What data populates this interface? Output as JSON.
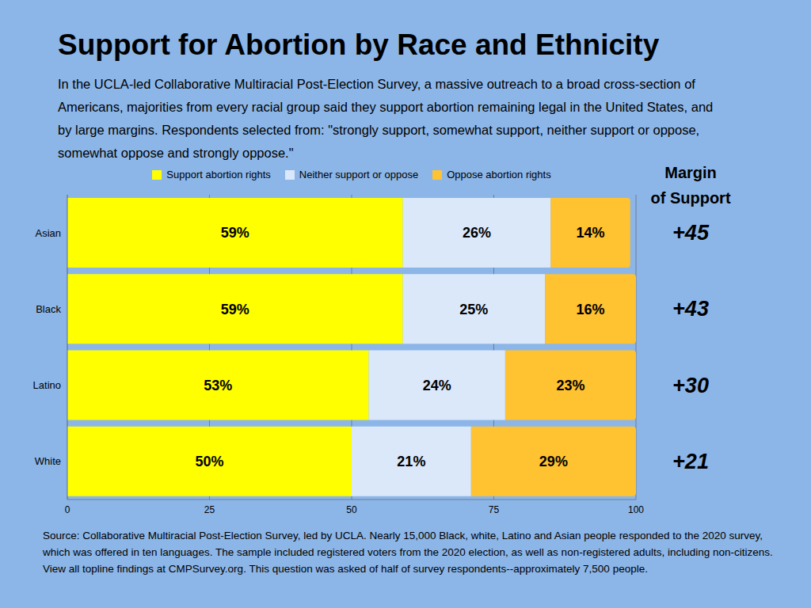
{
  "chart_data": {
    "type": "bar",
    "title": "Support for Abortion by Race and Ethnicity",
    "subtitle": "In the UCLA-led Collaborative Multiracial Post-Election Survey, a massive outreach to a broad cross-section of Americans, majorities from every racial group said they support abortion remaining legal in the United States, and by large margins. Respondents selected from: \"strongly support, somewhat support, neither support or oppose, somewhat oppose and strongly oppose.\"",
    "categories": [
      "Asian",
      "Black",
      "Latino",
      "White"
    ],
    "series": [
      {
        "name": "Support abortion rights",
        "color": "#ffff00",
        "values": [
          59,
          59,
          53,
          50
        ],
        "value_labels": [
          "59%",
          "59%",
          "53%",
          "50%"
        ]
      },
      {
        "name": "Neither support or oppose",
        "color": "#dae8fa",
        "values": [
          26,
          25,
          24,
          21
        ],
        "value_labels": [
          "26%",
          "25%",
          "24%",
          "21%"
        ]
      },
      {
        "name": "Oppose abortion rights",
        "color": "#ffc230",
        "values": [
          14,
          16,
          23,
          29
        ],
        "value_labels": [
          "14%",
          "16%",
          "23%",
          "29%"
        ]
      }
    ],
    "xlim": [
      0,
      100
    ],
    "xticks": [
      0,
      25,
      50,
      75,
      100
    ],
    "orientation": "horizontal",
    "stacked": true,
    "data_labels": true,
    "grid": true,
    "legend": "top",
    "margin_of_support": {
      "title": [
        "Margin",
        "of Support"
      ],
      "values": [
        45,
        43,
        30,
        21
      ],
      "value_labels": [
        "+45",
        "+43",
        "+30",
        "+21"
      ]
    },
    "source": "Source: Collaborative Multiracial Post-Election Survey, led by UCLA. Nearly 15,000 Black, white, Latino and Asian people responded to the 2020 survey, which was offered in ten languages. The sample included registered voters from the 2020 election, as well as non-registered adults, including non-citizens. View all topline findings at CMPSurvey.org. This question was asked of half of survey respondents--approximately 7,500 people."
  }
}
